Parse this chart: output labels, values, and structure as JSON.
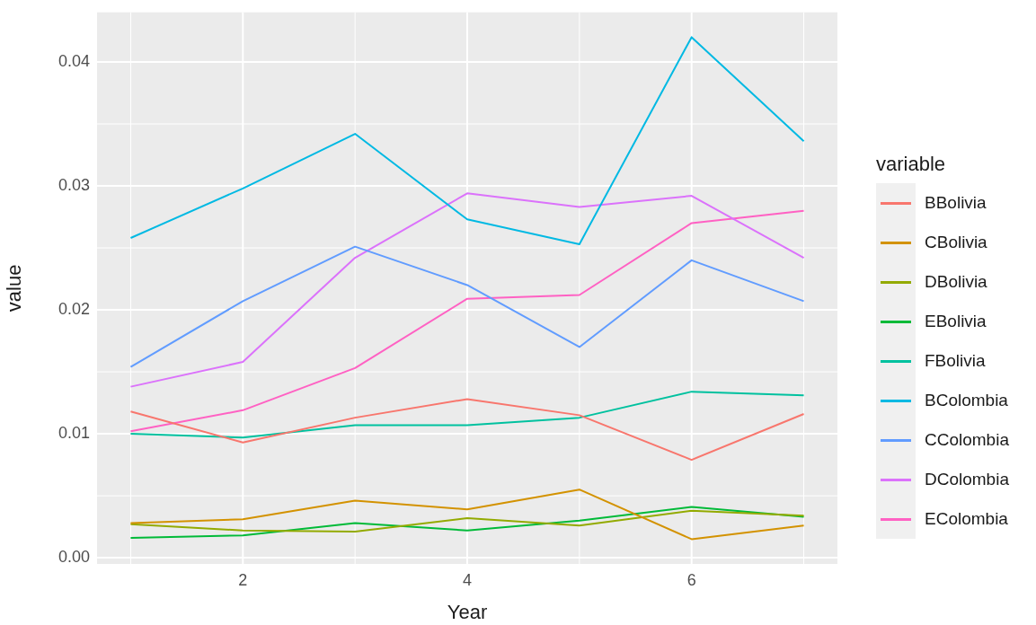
{
  "chart_data": {
    "type": "line",
    "xlabel": "Year",
    "ylabel": "value",
    "legend_title": "variable",
    "legend": "right",
    "grid": true,
    "marker": "none",
    "line_style": "solid",
    "x": [
      1,
      2,
      3,
      4,
      5,
      6,
      7
    ],
    "xlim": [
      0.7,
      7.3
    ],
    "xticks": [
      2,
      4,
      6
    ],
    "ylim": [
      -0.0005,
      0.044
    ],
    "yticks": [
      {
        "value": 0,
        "label": "0.00"
      },
      {
        "value": 0.01,
        "label": "0.01"
      },
      {
        "value": 0.02,
        "label": "0.02"
      },
      {
        "value": 0.03,
        "label": "0.03"
      },
      {
        "value": 0.04,
        "label": "0.04"
      }
    ],
    "series": [
      {
        "name": "BBolivia",
        "color": "#f8766d",
        "values": [
          0.0118,
          0.0093,
          0.0113,
          0.0128,
          0.0115,
          0.0079,
          0.0116
        ]
      },
      {
        "name": "CBolivia",
        "color": "#d39200",
        "values": [
          0.0028,
          0.0031,
          0.0046,
          0.0039,
          0.0055,
          0.0015,
          0.0026
        ]
      },
      {
        "name": "DBolivia",
        "color": "#93aa00",
        "values": [
          0.0027,
          0.0022,
          0.0021,
          0.0032,
          0.0026,
          0.0038,
          0.0034
        ]
      },
      {
        "name": "EBolivia",
        "color": "#00ba38",
        "values": [
          0.0016,
          0.0018,
          0.0028,
          0.0022,
          0.003,
          0.0041,
          0.0033
        ]
      },
      {
        "name": "FBolivia",
        "color": "#00c19f",
        "values": [
          0.01,
          0.0097,
          0.0107,
          0.0107,
          0.0113,
          0.0134,
          0.0131
        ]
      },
      {
        "name": "BColombia",
        "color": "#00b9e3",
        "values": [
          0.0258,
          0.0298,
          0.0342,
          0.0273,
          0.0253,
          0.042,
          0.0336
        ]
      },
      {
        "name": "CColombia",
        "color": "#619cff",
        "values": [
          0.0154,
          0.0207,
          0.0251,
          0.022,
          0.017,
          0.024,
          0.0207
        ]
      },
      {
        "name": "DColombia",
        "color": "#db72fb",
        "values": [
          0.0138,
          0.0158,
          0.0242,
          0.0294,
          0.0283,
          0.0292,
          0.0242
        ]
      },
      {
        "name": "EColombia",
        "color": "#ff61c3",
        "values": [
          0.0102,
          0.0119,
          0.0153,
          0.0209,
          0.0212,
          0.027,
          0.028
        ]
      }
    ]
  }
}
